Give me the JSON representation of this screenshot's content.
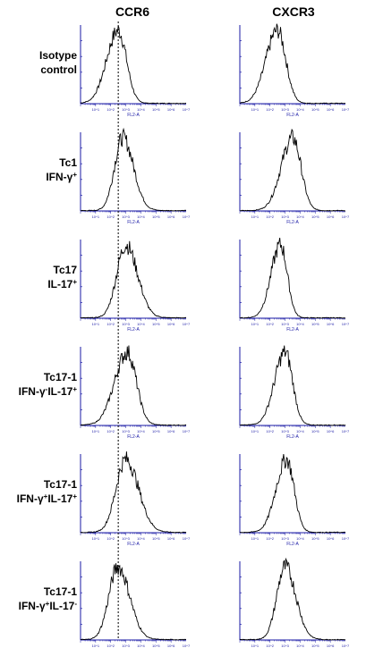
{
  "chart_data": {
    "type": "histogram",
    "columns": [
      "CCR6",
      "CXCR3"
    ],
    "rows": [
      {
        "line1": "Isotype",
        "line2": "control",
        "sup2": ""
      },
      {
        "line1": "Tc1",
        "line2": "IFN-γ",
        "sup2": "+"
      },
      {
        "line1": "Tc17",
        "line2": "IL-17",
        "sup2": "+"
      },
      {
        "line1": "Tc17-1",
        "line2": "IFN-γ",
        "sup2": "-",
        "line2b": "IL-17",
        "sup2b": "+"
      },
      {
        "line1": "Tc17-1",
        "line2": "IFN-γ",
        "sup2": "+",
        "line2b": "IL-17",
        "sup2b": "+"
      },
      {
        "line1": "Tc17-1",
        "line2": "IFN-γ",
        "sup2": "+",
        "line2b": "IL-17",
        "sup2b": "-"
      }
    ],
    "xlabel": "FL2-A",
    "x_scale": "log",
    "xlim": [
      1,
      10000000
    ],
    "x_ticks": [
      "10^1",
      "10^2",
      "10^3",
      "10^4",
      "10^5",
      "10^6",
      "10^7"
    ],
    "reference_line": {
      "x": 316,
      "style": "dotted"
    },
    "panels": [
      {
        "row": 0,
        "col": 0,
        "peak_x": 316,
        "width": 0.55,
        "skew": "left"
      },
      {
        "row": 0,
        "col": 1,
        "peak_x": 316,
        "width": 0.55,
        "skew": "left"
      },
      {
        "row": 1,
        "col": 0,
        "peak_x": 630,
        "width": 0.55,
        "skew": "right"
      },
      {
        "row": 1,
        "col": 1,
        "peak_x": 3200,
        "width": 0.55,
        "skew": "left"
      },
      {
        "row": 2,
        "col": 0,
        "peak_x": 1000,
        "width": 0.6,
        "skew": "right"
      },
      {
        "row": 2,
        "col": 1,
        "peak_x": 500,
        "width": 0.45,
        "skew": "left"
      },
      {
        "row": 3,
        "col": 0,
        "peak_x": 1260,
        "width": 0.6,
        "skew": "left"
      },
      {
        "row": 3,
        "col": 1,
        "peak_x": 1000,
        "width": 0.5,
        "skew": "left"
      },
      {
        "row": 4,
        "col": 0,
        "peak_x": 1000,
        "width": 0.65,
        "skew": "right"
      },
      {
        "row": 4,
        "col": 1,
        "peak_x": 1260,
        "width": 0.5,
        "skew": "left"
      },
      {
        "row": 5,
        "col": 0,
        "peak_x": 300,
        "width": 0.6,
        "skew": "right"
      },
      {
        "row": 5,
        "col": 1,
        "peak_x": 1000,
        "width": 0.55,
        "skew": "right"
      }
    ]
  }
}
